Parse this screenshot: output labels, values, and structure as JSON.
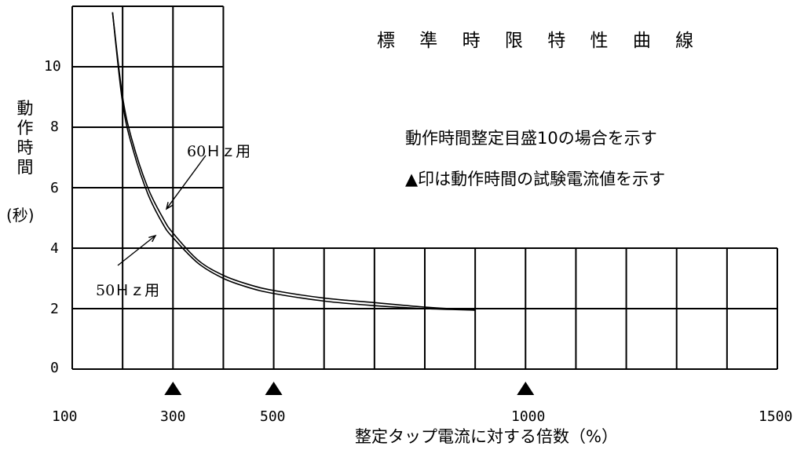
{
  "chart_data": {
    "type": "line",
    "title": "標 準 時 限 特 性 曲 線",
    "notes": [
      "動作時間整定目盛10の場合を示す",
      "▲印は動作時間の試験電流値を示す"
    ],
    "ylabel": "動作時間",
    "ylabel_unit": "(秒)",
    "xlabel": "整定タップ電流に対する倍数（%）",
    "ylim": [
      0,
      12
    ],
    "xlim": [
      100,
      1500
    ],
    "yticks": [
      0,
      2,
      4,
      6,
      8,
      10
    ],
    "ytick_labels": [
      "0",
      "2",
      "4",
      "6",
      "8",
      "10"
    ],
    "xtick_labels": [
      {
        "value": 100,
        "label": "100"
      },
      {
        "value": 300,
        "label": "300"
      },
      {
        "value": 500,
        "label": "500"
      },
      {
        "value": 1000,
        "label": "1000"
      },
      {
        "value": 1500,
        "label": "1500"
      }
    ],
    "test_markers_x": [
      300,
      500,
      1000
    ],
    "series": [
      {
        "name": "60Hz用",
        "x": [
          180,
          200,
          220,
          250,
          280,
          300,
          350,
          400,
          450,
          500,
          600,
          700,
          800,
          900
        ],
        "y": [
          11.8,
          9.0,
          7.5,
          6.0,
          5.0,
          4.5,
          3.6,
          3.1,
          2.8,
          2.6,
          2.35,
          2.2,
          2.05,
          1.95
        ]
      },
      {
        "name": "50Hz用",
        "x": [
          180,
          200,
          220,
          250,
          280,
          300,
          350,
          400,
          450,
          500,
          600,
          700,
          800,
          900
        ],
        "y": [
          11.8,
          8.8,
          7.3,
          5.8,
          4.8,
          4.35,
          3.5,
          3.0,
          2.7,
          2.5,
          2.25,
          2.1,
          2.0,
          1.95
        ]
      }
    ],
    "grid": true
  },
  "annotations": {
    "hz60": "60Ｈｚ用",
    "hz50": "50Ｈｚ用"
  },
  "colors": {
    "line": "#000000",
    "background": "#ffffff"
  }
}
